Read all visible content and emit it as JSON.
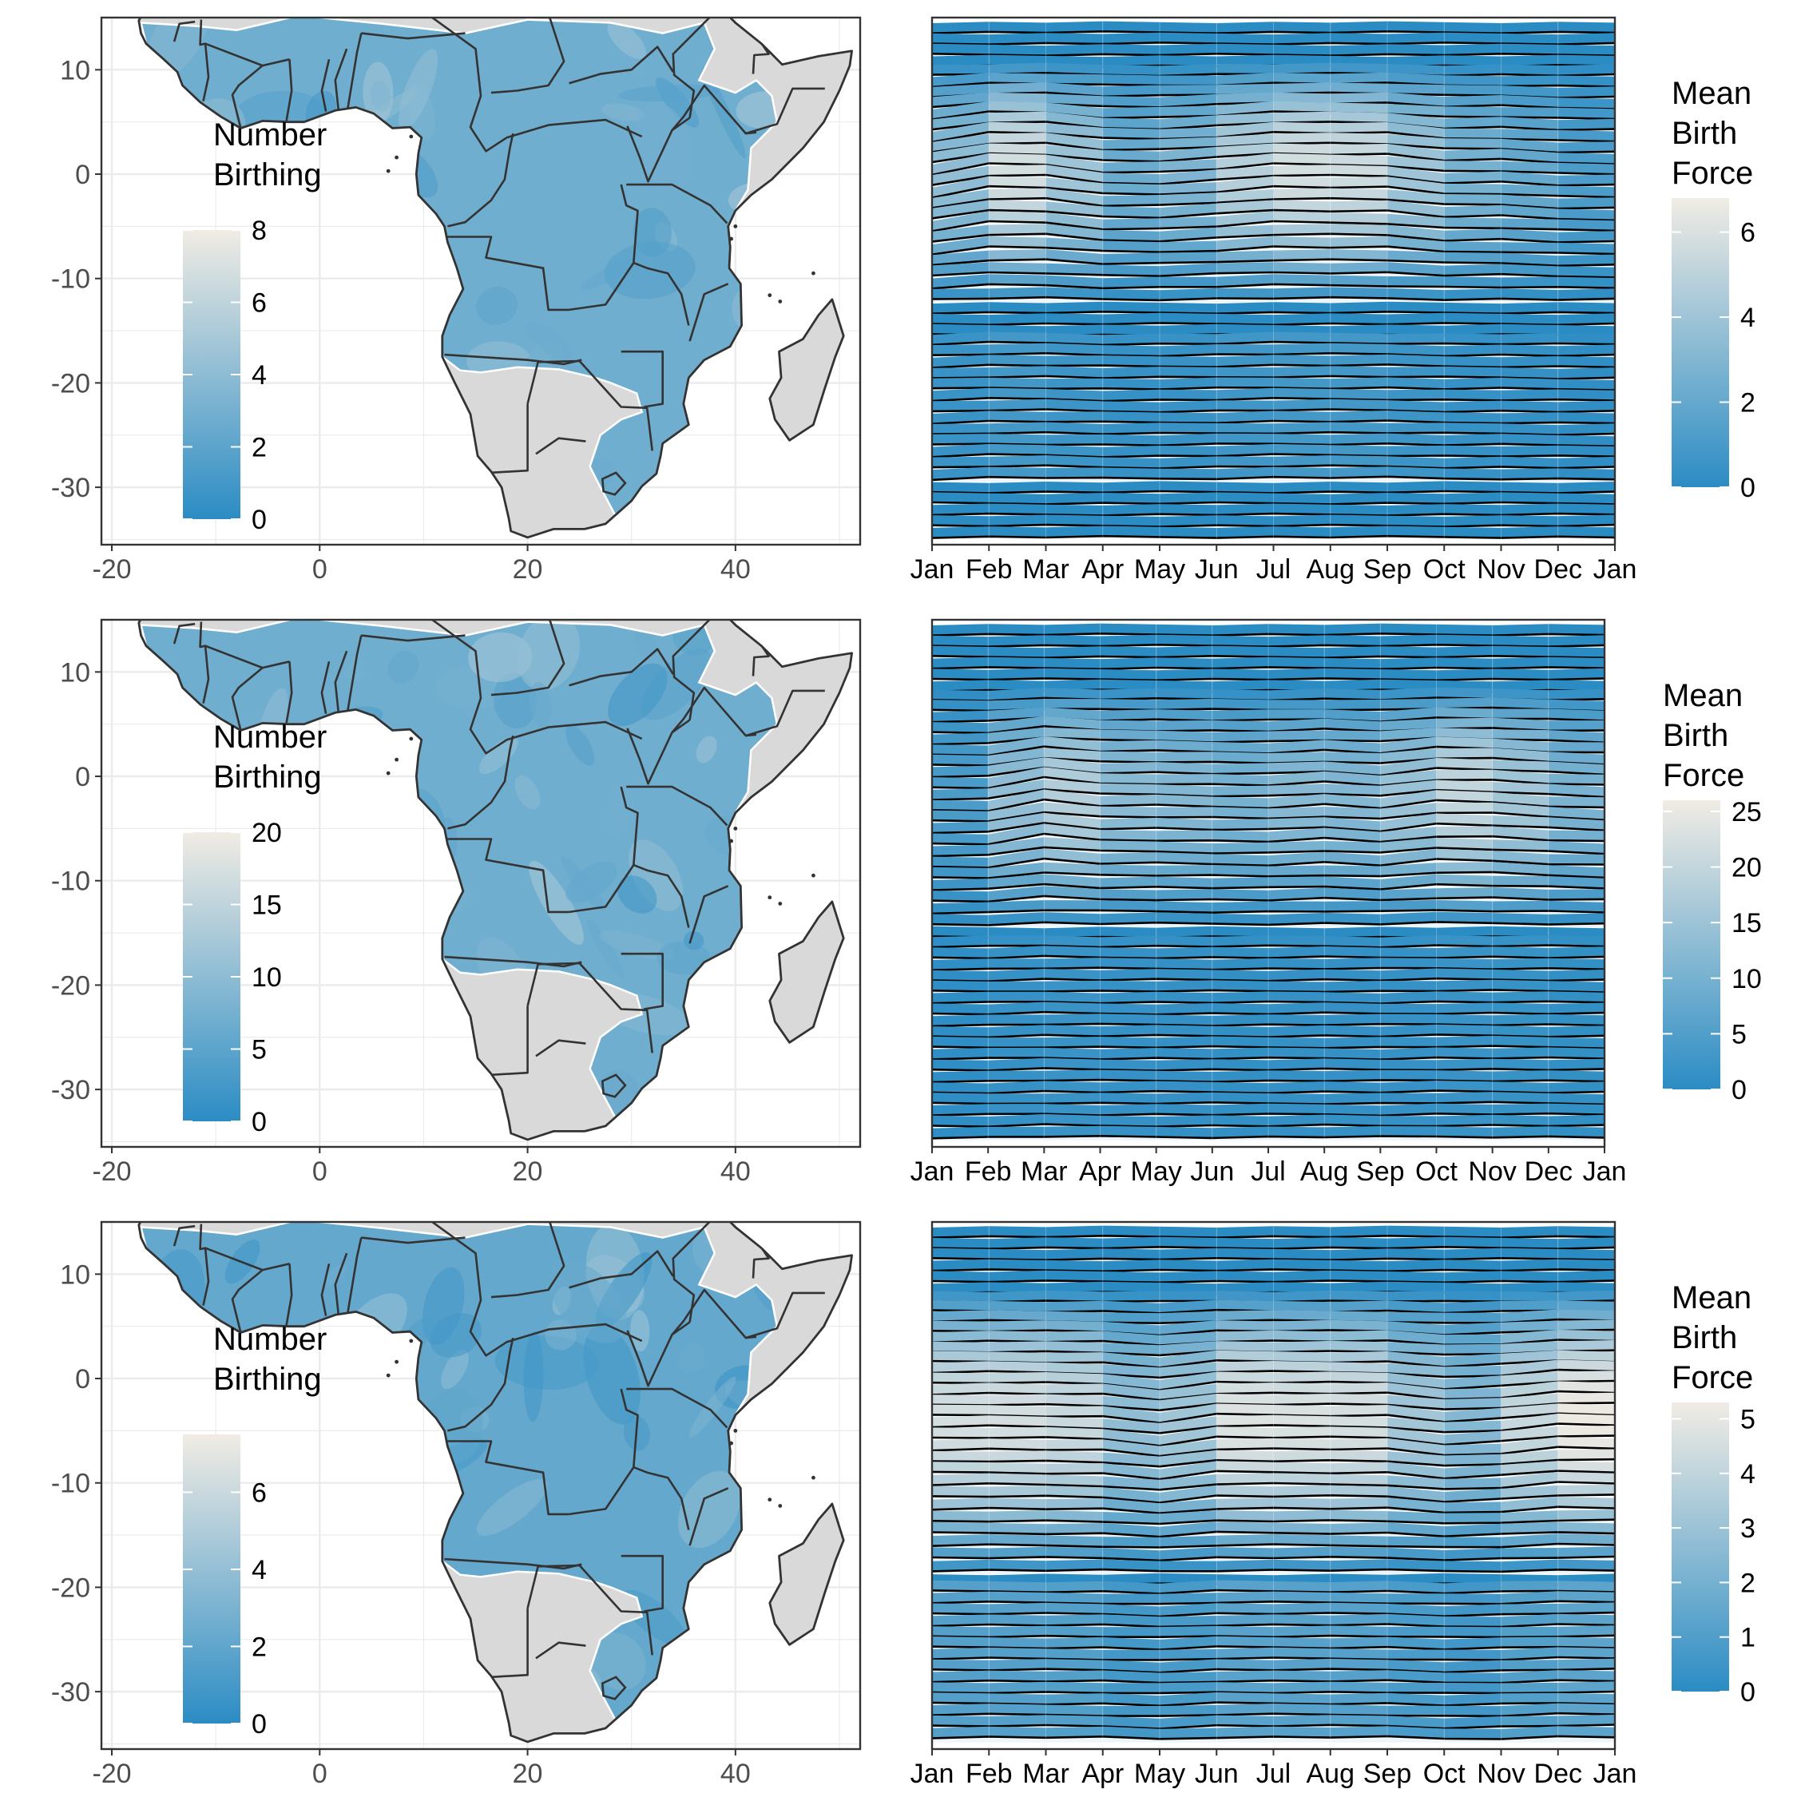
{
  "colors": {
    "low": "#2b8cc4",
    "high": "#f1ece4",
    "land": "#d9d9d9",
    "border": "#333333",
    "ridge_line": "#000000",
    "panel_border": "#333333",
    "grid": "#ebebeb",
    "tick_text": "#4d4d4d"
  },
  "chart_data": [
    {
      "panel": "map-1",
      "type": "heatmap",
      "xlim": [
        -21,
        52
      ],
      "ylim": [
        -35.5,
        15
      ],
      "x_ticks": [
        -20,
        0,
        20,
        40
      ],
      "y_ticks": [
        10,
        0,
        -10,
        -20,
        -30
      ],
      "grid": true,
      "legend": {
        "title_lines": [
          "Number",
          "Birthing"
        ],
        "min": 0,
        "max": 8,
        "ticks": [
          0,
          2,
          4,
          6,
          8
        ],
        "placement": "inside-left"
      },
      "mean_level": 2.8
    },
    {
      "panel": "ridges-1",
      "type": "area",
      "x": [
        "Jan",
        "Feb",
        "Mar",
        "Apr",
        "May",
        "Jun",
        "Jul",
        "Aug",
        "Sep",
        "Oct",
        "Nov",
        "Dec",
        "Jan"
      ],
      "n_ridges": 46,
      "grid": false,
      "legend": {
        "title_lines": [
          "Mean",
          "Birth",
          "Force"
        ],
        "min": 0,
        "max": 6.8,
        "ticks": [
          0,
          2,
          4,
          6
        ],
        "placement": "right"
      },
      "month_profile": [
        1.0,
        5.6,
        5.4,
        2.2,
        2.0,
        3.5,
        5.6,
        5.4,
        5.2,
        2.4,
        2.6,
        1.2,
        1.0
      ],
      "band": [
        4,
        24
      ],
      "secondary": {
        "band": [
          28,
          40
        ],
        "level": 0.15
      }
    },
    {
      "panel": "map-2",
      "type": "heatmap",
      "xlim": [
        -21,
        52
      ],
      "ylim": [
        -35.5,
        15
      ],
      "x_ticks": [
        -20,
        0,
        20,
        40
      ],
      "y_ticks": [
        10,
        0,
        -10,
        -20,
        -30
      ],
      "grid": true,
      "legend": {
        "title_lines": [
          "Number",
          "Birthing"
        ],
        "min": 0,
        "max": 20,
        "ticks": [
          0,
          5,
          10,
          15,
          20
        ],
        "placement": "inside-left"
      },
      "mean_level": 7
    },
    {
      "panel": "ridges-2",
      "type": "area",
      "x": [
        "Jan",
        "Feb",
        "Mar",
        "Apr",
        "May",
        "Jun",
        "Jul",
        "Aug",
        "Sep",
        "Oct",
        "Nov",
        "Dec",
        "Jan"
      ],
      "n_ridges": 46,
      "grid": false,
      "legend": {
        "title_lines": [
          "Mean",
          "Birth",
          "Force"
        ],
        "min": 0,
        "max": 26,
        "ticks": [
          0,
          5,
          10,
          15,
          20,
          25
        ],
        "placement": "right"
      },
      "month_profile": [
        4,
        4,
        22,
        12,
        12,
        10,
        9,
        14,
        8,
        20,
        18,
        12,
        8
      ],
      "band": [
        6,
        26
      ],
      "secondary": {
        "band": [
          28,
          46
        ],
        "level": 0.1
      }
    },
    {
      "panel": "map-3",
      "type": "heatmap",
      "xlim": [
        -21,
        52
      ],
      "ylim": [
        -35.5,
        15
      ],
      "x_ticks": [
        -20,
        0,
        20,
        40
      ],
      "y_ticks": [
        10,
        0,
        -10,
        -20,
        -30
      ],
      "grid": true,
      "legend": {
        "title_lines": [
          "Number",
          "Birthing"
        ],
        "min": 0,
        "max": 7.5,
        "ticks": [
          0,
          2,
          4,
          6
        ],
        "placement": "inside-left"
      },
      "mean_level": 2.2
    },
    {
      "panel": "ridges-3",
      "type": "area",
      "x": [
        "Jan",
        "Feb",
        "Mar",
        "Apr",
        "May",
        "Jun",
        "Jul",
        "Aug",
        "Sep",
        "Oct",
        "Nov",
        "Dec",
        "Jan"
      ],
      "n_ridges": 46,
      "grid": false,
      "legend": {
        "title_lines": [
          "Mean",
          "Birth",
          "Force"
        ],
        "min": 0,
        "max": 5.3,
        "ticks": [
          0,
          1,
          2,
          3,
          4,
          5
        ],
        "placement": "right"
      },
      "month_profile": [
        4.2,
        4.4,
        4.2,
        3.8,
        1.4,
        4.6,
        4.5,
        4.4,
        4.3,
        1.8,
        2.8,
        5.1,
        4.8
      ],
      "band": [
        6,
        30
      ],
      "secondary": {
        "band": [
          32,
          46
        ],
        "level": 0.25
      }
    }
  ]
}
